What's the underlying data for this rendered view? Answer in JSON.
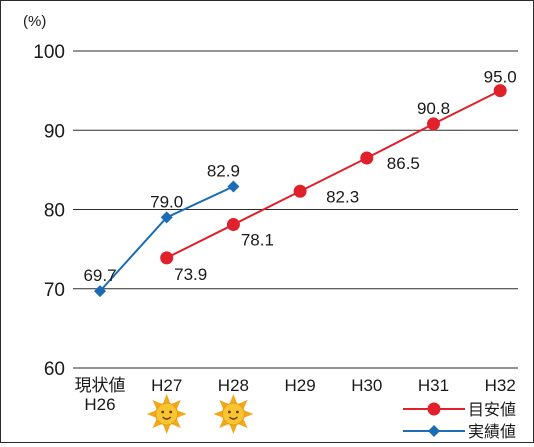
{
  "chart_data": {
    "type": "line",
    "unit_label": "(%)",
    "categories": [
      "現状値\nH26",
      "H27",
      "H28",
      "H29",
      "H30",
      "H31",
      "H32"
    ],
    "ylim": [
      60,
      100
    ],
    "yticks": [
      60,
      70,
      80,
      90,
      100
    ],
    "grid": true,
    "legend_position": "bottom-right",
    "series": [
      {
        "name": "目安値",
        "color": "#e0202a",
        "marker": "circle",
        "values": [
          null,
          73.9,
          78.1,
          82.3,
          86.5,
          90.8,
          95.0
        ],
        "labels": [
          "",
          "73.9",
          "78.1",
          "82.3",
          "86.5",
          "90.8",
          "95.0"
        ]
      },
      {
        "name": "実績値",
        "color": "#1a6db5",
        "marker": "diamond",
        "values": [
          69.7,
          79.0,
          82.9,
          null,
          null,
          null,
          null
        ],
        "labels": [
          "69.7",
          "79.0",
          "82.9",
          "",
          "",
          "",
          ""
        ]
      }
    ],
    "sun_icons_under": [
      "H27",
      "H28"
    ]
  }
}
